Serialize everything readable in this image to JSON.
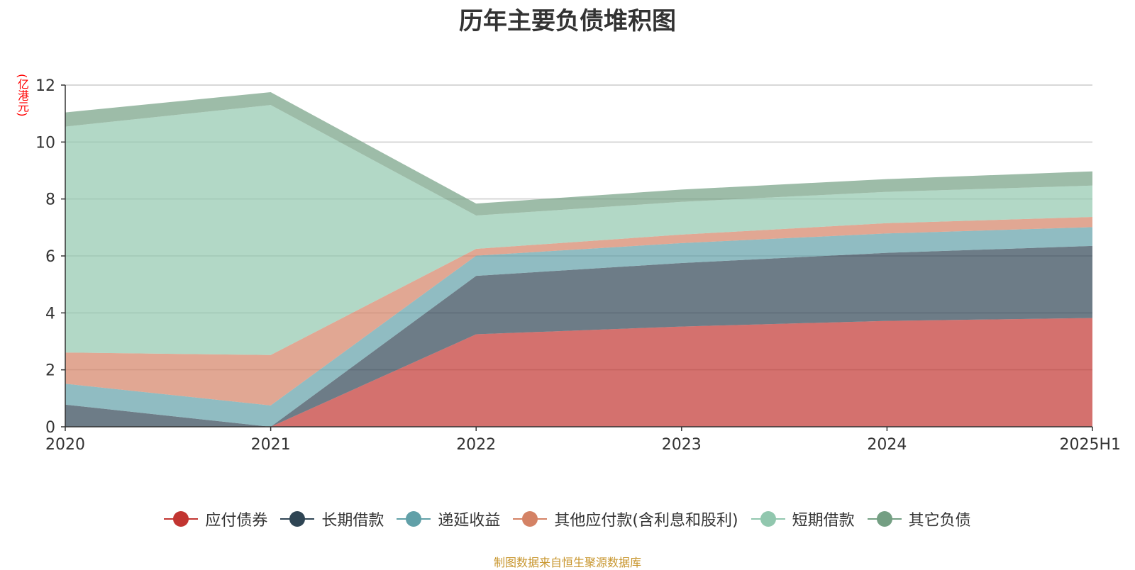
{
  "chart_data": {
    "type": "area",
    "stacked": true,
    "title": "历年主要负债堆积图",
    "unit_label": "(亿港元)",
    "categories": [
      "2020",
      "2021",
      "2022",
      "2023",
      "2024",
      "2025H1"
    ],
    "ylim": [
      0,
      12
    ],
    "yticks": [
      "0",
      "2",
      "4",
      "6",
      "8",
      "10",
      "12"
    ],
    "grid": true,
    "legend_position": "bottom",
    "series": [
      {
        "name": "应付债券",
        "color": "#c23531",
        "values": [
          0,
          0,
          3.25,
          3.52,
          3.72,
          3.82
        ]
      },
      {
        "name": "长期借款",
        "color": "#2f4554",
        "values": [
          0.78,
          0,
          2.05,
          2.23,
          2.39,
          2.53
        ]
      },
      {
        "name": "递延收益",
        "color": "#61a0a8",
        "values": [
          0.73,
          0.75,
          0.71,
          0.7,
          0.68,
          0.66
        ]
      },
      {
        "name": "其他应付款(含利息和股利)",
        "color": "#d48265",
        "values": [
          1.1,
          1.77,
          0.24,
          0.3,
          0.36,
          0.36
        ]
      },
      {
        "name": "短期借款",
        "color": "#91c7ae",
        "values": [
          7.93,
          8.78,
          1.17,
          1.15,
          1.1,
          1.1
        ]
      },
      {
        "name": "其它负债",
        "color": "#749f83",
        "values": [
          0.5,
          0.45,
          0.42,
          0.43,
          0.45,
          0.5
        ]
      }
    ]
  },
  "source_note": "制图数据来自恒生聚源数据库"
}
